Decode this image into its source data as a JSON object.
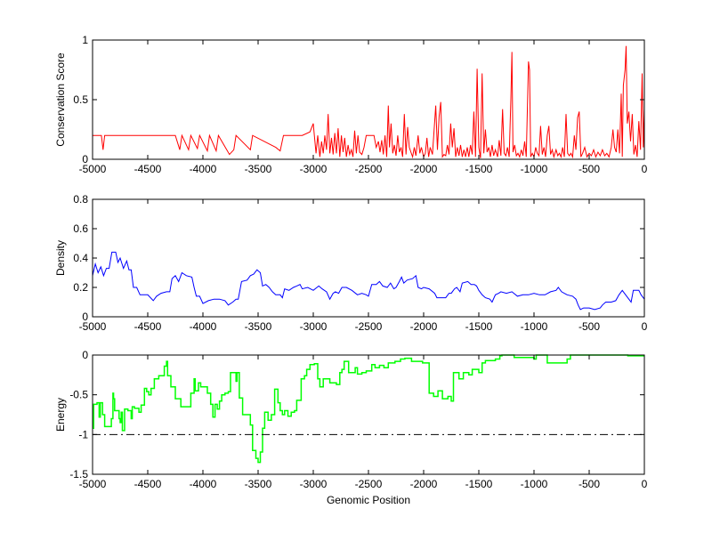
{
  "chart_data": [
    {
      "type": "line",
      "ylabel": "Conservation Score",
      "xlabel": "",
      "xlim": [
        -5000,
        0
      ],
      "ylim": [
        0,
        1
      ],
      "xticks": [
        -5000,
        -4500,
        -4000,
        -3500,
        -3000,
        -2500,
        -2000,
        -1500,
        -1000,
        -500,
        0
      ],
      "yticks": [
        0,
        0.5,
        1
      ],
      "ytick_labels": [
        "0",
        "0.5",
        "1"
      ],
      "color": "#ff0000",
      "x": [
        -5000,
        -4920,
        -4905,
        -4890,
        -4250,
        -4210,
        -4190,
        -4130,
        -4110,
        -4050,
        -4030,
        -3960,
        -3940,
        -3880,
        -3860,
        -3760,
        -3720,
        -3700,
        -3570,
        -3550,
        -3340,
        -3300,
        -3270,
        -3100,
        -3030,
        -3000,
        -2990,
        -2975,
        -2960,
        -2940,
        -2925,
        -2910,
        -2895,
        -2880,
        -2865,
        -2850,
        -2835,
        -2820,
        -2805,
        -2790,
        -2775,
        -2760,
        -2745,
        -2730,
        -2715,
        -2700,
        -2685,
        -2670,
        -2655,
        -2640,
        -2625,
        -2610,
        -2595,
        -2580,
        -2560,
        -2540,
        -2520,
        -2480,
        -2450,
        -2430,
        -2410,
        -2395,
        -2380,
        -2365,
        -2350,
        -2335,
        -2320,
        -2310,
        -2295,
        -2280,
        -2265,
        -2250,
        -2235,
        -2220,
        -2205,
        -2190,
        -2175,
        -2160,
        -2145,
        -2130,
        -2115,
        -2100,
        -2085,
        -2070,
        -2050,
        -2035,
        -2020,
        -2000,
        -1985,
        -1970,
        -1955,
        -1940,
        -1920,
        -1905,
        -1890,
        -1875,
        -1860,
        -1845,
        -1830,
        -1815,
        -1800,
        -1785,
        -1770,
        -1755,
        -1740,
        -1725,
        -1710,
        -1695,
        -1680,
        -1665,
        -1650,
        -1635,
        -1620,
        -1605,
        -1590,
        -1575,
        -1560,
        -1545,
        -1530,
        -1515,
        -1500,
        -1485,
        -1470,
        -1455,
        -1440,
        -1425,
        -1410,
        -1395,
        -1380,
        -1365,
        -1350,
        -1330,
        -1315,
        -1300,
        -1285,
        -1270,
        -1255,
        -1240,
        -1225,
        -1210,
        -1200,
        -1190,
        -1175,
        -1160,
        -1145,
        -1130,
        -1115,
        -1100,
        -1085,
        -1070,
        -1050,
        -1040,
        -1030,
        -1015,
        -1000,
        -985,
        -970,
        -955,
        -940,
        -925,
        -910,
        -895,
        -880,
        -865,
        -850,
        -835,
        -820,
        -800,
        -785,
        -770,
        -755,
        -740,
        -725,
        -710,
        -695,
        -680,
        -665,
        -650,
        -635,
        -620,
        -605,
        -590,
        -575,
        -560,
        -540,
        -520,
        -500,
        -480,
        -460,
        -440,
        -420,
        -400,
        -380,
        -360,
        -340,
        -320,
        -300,
        -285,
        -270,
        -255,
        -240,
        -225,
        -210,
        -200,
        -190,
        -175,
        -165,
        -155,
        -140,
        -125,
        -110,
        -95,
        -80,
        -65,
        -50,
        -35,
        -20,
        -10,
        0
      ],
      "y": [
        0.2,
        0.2,
        0.08,
        0.2,
        0.2,
        0.08,
        0.2,
        0.08,
        0.2,
        0.09,
        0.2,
        0.07,
        0.2,
        0.07,
        0.2,
        0.04,
        0.08,
        0.2,
        0.08,
        0.2,
        0.1,
        0.07,
        0.2,
        0.2,
        0.23,
        0.3,
        0.2,
        0.05,
        0.2,
        0.02,
        0.15,
        0.05,
        0.2,
        0.08,
        0.38,
        0.05,
        0.18,
        0.04,
        0.22,
        0.05,
        0.26,
        0.02,
        0.2,
        0.06,
        0.18,
        0.02,
        0.12,
        0.04,
        0.08,
        0.02,
        0.24,
        0.05,
        0.2,
        0.06,
        0.04,
        0.1,
        0.2,
        0.2,
        0.2,
        0.1,
        0.15,
        0.06,
        0.16,
        0.04,
        0.2,
        0.02,
        0.45,
        0.1,
        0.3,
        0.05,
        0.12,
        0.03,
        0.2,
        0.06,
        0.1,
        0.02,
        0.38,
        0.04,
        0.27,
        0.1,
        0.06,
        0.02,
        0.1,
        0.03,
        0.2,
        0.05,
        0.1,
        0.02,
        0.05,
        0.18,
        0.02,
        0.1,
        0.04,
        0.25,
        0.45,
        0.08,
        0.36,
        0.48,
        0.02,
        0.04,
        0.03,
        0.12,
        0.04,
        0.3,
        0.1,
        0.26,
        0.02,
        0.1,
        0.03,
        0.12,
        0.02,
        0.08,
        0.02,
        0.1,
        0.02,
        0.12,
        0.04,
        0.4,
        0.02,
        0.76,
        0.1,
        0.01,
        0.72,
        0.05,
        0.25,
        0.06,
        0.1,
        0.02,
        0.12,
        0.03,
        0.08,
        0.02,
        0.16,
        0.03,
        0.42,
        0.05,
        0.03,
        0.1,
        0.02,
        0.5,
        0.9,
        0.06,
        0.12,
        0.03,
        0.05,
        0.02,
        0.08,
        0.03,
        0.15,
        0.02,
        0.82,
        0.75,
        0.02,
        0.05,
        0.02,
        0.1,
        0.05,
        0.03,
        0.28,
        0.04,
        0.1,
        0.02,
        0.2,
        0.28,
        0.04,
        0.08,
        0.02,
        0.08,
        0.03,
        0.05,
        0.02,
        0.1,
        0.02,
        0.38,
        0.05,
        0.03,
        0.05,
        0.02,
        0.2,
        0.08,
        0.35,
        0.4,
        0.02,
        0.05,
        0.1,
        0.02,
        0.05,
        0.03,
        0.08,
        0.02,
        0.06,
        0.03,
        0.08,
        0.03,
        0.05,
        0.02,
        0.1,
        0.25,
        0.1,
        0.06,
        0.25,
        0.05,
        0.55,
        0.02,
        0.62,
        0.75,
        0.95,
        0.3,
        0.4,
        0.15,
        0.38,
        0.04,
        0.12,
        0.02,
        0.32,
        0.08,
        0.72,
        0.1,
        0.42
      ]
    },
    {
      "type": "line",
      "ylabel": "Density",
      "xlabel": "",
      "xlim": [
        -5000,
        0
      ],
      "ylim": [
        0,
        0.8
      ],
      "xticks": [
        -5000,
        -4500,
        -4000,
        -3500,
        -3000,
        -2500,
        -2000,
        -1500,
        -1000,
        -500,
        0
      ],
      "yticks": [
        0,
        0.2,
        0.4,
        0.6,
        0.8
      ],
      "ytick_labels": [
        "0",
        "0.2",
        "0.4",
        "0.6",
        "0.8"
      ],
      "color": "#0000ff",
      "x": [
        -5000,
        -4975,
        -4950,
        -4925,
        -4900,
        -4875,
        -4850,
        -4825,
        -4790,
        -4770,
        -4750,
        -4720,
        -4690,
        -4670,
        -4650,
        -4630,
        -4600,
        -4570,
        -4500,
        -4450,
        -4420,
        -4380,
        -4330,
        -4300,
        -4280,
        -4250,
        -4220,
        -4190,
        -4150,
        -4100,
        -4080,
        -4060,
        -4030,
        -4000,
        -3950,
        -3900,
        -3850,
        -3800,
        -3770,
        -3730,
        -3700,
        -3680,
        -3650,
        -3600,
        -3570,
        -3540,
        -3510,
        -3480,
        -3460,
        -3430,
        -3400,
        -3370,
        -3340,
        -3300,
        -3280,
        -3260,
        -3220,
        -3180,
        -3150,
        -3120,
        -3100,
        -3050,
        -3000,
        -2950,
        -2920,
        -2880,
        -2850,
        -2820,
        -2800,
        -2770,
        -2740,
        -2700,
        -2650,
        -2600,
        -2560,
        -2520,
        -2500,
        -2470,
        -2430,
        -2400,
        -2370,
        -2330,
        -2300,
        -2270,
        -2250,
        -2220,
        -2200,
        -2180,
        -2150,
        -2100,
        -2070,
        -2050,
        -2020,
        -2000,
        -1950,
        -1900,
        -1880,
        -1850,
        -1800,
        -1770,
        -1750,
        -1720,
        -1700,
        -1670,
        -1650,
        -1600,
        -1570,
        -1540,
        -1520,
        -1500,
        -1470,
        -1440,
        -1400,
        -1380,
        -1350,
        -1320,
        -1300,
        -1250,
        -1200,
        -1150,
        -1100,
        -1050,
        -1000,
        -950,
        -900,
        -850,
        -800,
        -780,
        -750,
        -700,
        -650,
        -620,
        -600,
        -580,
        -550,
        -500,
        -450,
        -400,
        -380,
        -350,
        -300,
        -260,
        -230,
        -200,
        -170,
        -140,
        -120,
        -100,
        -50,
        -30,
        0
      ],
      "y": [
        0.28,
        0.36,
        0.3,
        0.34,
        0.28,
        0.33,
        0.33,
        0.44,
        0.44,
        0.37,
        0.4,
        0.33,
        0.38,
        0.32,
        0.32,
        0.2,
        0.2,
        0.15,
        0.15,
        0.11,
        0.14,
        0.16,
        0.17,
        0.17,
        0.26,
        0.28,
        0.24,
        0.3,
        0.28,
        0.27,
        0.2,
        0.14,
        0.14,
        0.09,
        0.11,
        0.12,
        0.12,
        0.11,
        0.08,
        0.1,
        0.12,
        0.12,
        0.24,
        0.25,
        0.28,
        0.29,
        0.32,
        0.3,
        0.21,
        0.22,
        0.2,
        0.17,
        0.15,
        0.15,
        0.13,
        0.19,
        0.18,
        0.2,
        0.21,
        0.22,
        0.19,
        0.2,
        0.18,
        0.21,
        0.19,
        0.17,
        0.12,
        0.16,
        0.17,
        0.16,
        0.2,
        0.2,
        0.18,
        0.15,
        0.16,
        0.15,
        0.14,
        0.22,
        0.22,
        0.24,
        0.21,
        0.2,
        0.23,
        0.19,
        0.2,
        0.24,
        0.27,
        0.23,
        0.25,
        0.26,
        0.28,
        0.2,
        0.19,
        0.2,
        0.19,
        0.16,
        0.13,
        0.13,
        0.13,
        0.16,
        0.16,
        0.19,
        0.2,
        0.17,
        0.23,
        0.24,
        0.22,
        0.22,
        0.21,
        0.18,
        0.15,
        0.13,
        0.12,
        0.1,
        0.15,
        0.16,
        0.17,
        0.16,
        0.17,
        0.14,
        0.15,
        0.15,
        0.16,
        0.15,
        0.15,
        0.17,
        0.18,
        0.2,
        0.17,
        0.15,
        0.14,
        0.12,
        0.08,
        0.05,
        0.06,
        0.06,
        0.05,
        0.06,
        0.08,
        0.1,
        0.1,
        0.11,
        0.15,
        0.18,
        0.15,
        0.12,
        0.1,
        0.18,
        0.18,
        0.15,
        0.12
      ]
    },
    {
      "type": "line",
      "ylabel": "Energy",
      "xlabel": "Genomic Position",
      "xlim": [
        -5000,
        0
      ],
      "ylim": [
        -1.5,
        0
      ],
      "xticks": [
        -5000,
        -4500,
        -4000,
        -3500,
        -3000,
        -2500,
        -2000,
        -1500,
        -1000,
        -500,
        0
      ],
      "yticks": [
        -1.5,
        -1,
        -0.5,
        0
      ],
      "ytick_labels": [
        "-1.5",
        "-1",
        "-0.5",
        "0"
      ],
      "color": "#00ff00",
      "step": true,
      "threshold": {
        "y": -1,
        "style": "dash-dot",
        "color": "#000000"
      },
      "x": [
        -5000,
        -4990,
        -4960,
        -4940,
        -4930,
        -4910,
        -4890,
        -4840,
        -4830,
        -4815,
        -4810,
        -4800,
        -4760,
        -4750,
        -4740,
        -4730,
        -4710,
        -4680,
        -4650,
        -4640,
        -4620,
        -4580,
        -4560,
        -4530,
        -4510,
        -4490,
        -4470,
        -4440,
        -4400,
        -4350,
        -4330,
        -4320,
        -4290,
        -4250,
        -4200,
        -4110,
        -4080,
        -4070,
        -4040,
        -4020,
        -3960,
        -3930,
        -3910,
        -3890,
        -3870,
        -3850,
        -3830,
        -3800,
        -3770,
        -3750,
        -3700,
        -3690,
        -3670,
        -3640,
        -3570,
        -3550,
        -3520,
        -3500,
        -3480,
        -3460,
        -3440,
        -3410,
        -3380,
        -3350,
        -3320,
        -3300,
        -3280,
        -3260,
        -3230,
        -3200,
        -3170,
        -3150,
        -3110,
        -3080,
        -3060,
        -3030,
        -2990,
        -2960,
        -2940,
        -2910,
        -2850,
        -2790,
        -2760,
        -2740,
        -2720,
        -2680,
        -2620,
        -2600,
        -2560,
        -2520,
        -2470,
        -2440,
        -2400,
        -2360,
        -2320,
        -2260,
        -2210,
        -2170,
        -2110,
        -2010,
        -1950,
        -1910,
        -1870,
        -1830,
        -1780,
        -1750,
        -1730,
        -1680,
        -1640,
        -1590,
        -1560,
        -1500,
        -1470,
        -1440,
        -1350,
        -1310,
        -1290,
        -1180,
        -1000,
        -980,
        -880,
        -700,
        -670,
        -150,
        0
      ],
      "y": [
        -0.92,
        -0.62,
        -0.6,
        -0.78,
        -0.6,
        -0.75,
        -0.9,
        -0.9,
        -0.8,
        -0.48,
        -0.55,
        -0.7,
        -0.8,
        -0.85,
        -0.72,
        -0.95,
        -0.68,
        -0.7,
        -0.8,
        -0.65,
        -0.67,
        -0.72,
        -0.63,
        -0.42,
        -0.46,
        -0.5,
        -0.42,
        -0.3,
        -0.26,
        -0.14,
        -0.08,
        -0.26,
        -0.4,
        -0.55,
        -0.65,
        -0.48,
        -0.3,
        -0.45,
        -0.35,
        -0.4,
        -0.48,
        -0.62,
        -0.78,
        -0.62,
        -0.68,
        -0.58,
        -0.5,
        -0.48,
        -0.46,
        -0.22,
        -0.33,
        -0.22,
        -0.54,
        -0.75,
        -0.88,
        -1.2,
        -1.3,
        -1.35,
        -1.22,
        -0.92,
        -0.72,
        -0.82,
        -0.75,
        -0.43,
        -0.6,
        -0.7,
        -0.75,
        -0.7,
        -0.77,
        -0.72,
        -0.7,
        -0.57,
        -0.3,
        -0.26,
        -0.18,
        -0.12,
        -0.11,
        -0.3,
        -0.4,
        -0.3,
        -0.35,
        -0.37,
        -0.22,
        -0.18,
        -0.08,
        -0.22,
        -0.16,
        -0.24,
        -0.22,
        -0.2,
        -0.12,
        -0.16,
        -0.13,
        -0.16,
        -0.1,
        -0.08,
        -0.05,
        -0.04,
        -0.08,
        -0.1,
        -0.48,
        -0.52,
        -0.45,
        -0.55,
        -0.52,
        -0.58,
        -0.22,
        -0.3,
        -0.22,
        -0.25,
        -0.18,
        -0.22,
        -0.1,
        -0.07,
        -0.05,
        -0.01,
        0,
        -0.03,
        -0.05,
        0,
        -0.1,
        -0.05,
        0,
        -0.01,
        -0.02
      ]
    }
  ]
}
